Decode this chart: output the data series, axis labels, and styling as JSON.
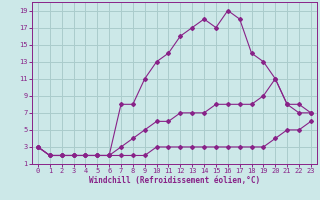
{
  "xlabel": "Windchill (Refroidissement éolien,°C)",
  "bg_color": "#cce8e8",
  "line_color": "#882288",
  "grid_color": "#aacccc",
  "xlim": [
    -0.5,
    23.5
  ],
  "ylim": [
    1,
    20
  ],
  "xticks": [
    0,
    1,
    2,
    3,
    4,
    5,
    6,
    7,
    8,
    9,
    10,
    11,
    12,
    13,
    14,
    15,
    16,
    17,
    18,
    19,
    20,
    21,
    22,
    23
  ],
  "yticks": [
    1,
    3,
    5,
    7,
    9,
    11,
    13,
    15,
    17,
    19
  ],
  "line1_x": [
    0,
    1,
    2,
    3,
    4,
    5,
    6,
    7,
    8,
    9,
    10,
    11,
    12,
    13,
    14,
    15,
    16,
    17,
    18,
    19,
    20,
    21,
    22,
    23
  ],
  "line1_y": [
    3,
    2,
    2,
    2,
    2,
    2,
    2,
    2,
    2,
    2,
    3,
    3,
    3,
    3,
    3,
    3,
    3,
    3,
    3,
    3,
    4,
    5,
    5,
    6
  ],
  "line2_x": [
    0,
    1,
    2,
    3,
    4,
    5,
    6,
    7,
    8,
    9,
    10,
    11,
    12,
    13,
    14,
    15,
    16,
    17,
    18,
    19,
    20,
    21,
    22,
    23
  ],
  "line2_y": [
    3,
    2,
    2,
    2,
    2,
    2,
    2,
    3,
    4,
    5,
    6,
    6,
    7,
    7,
    7,
    8,
    8,
    8,
    8,
    9,
    11,
    8,
    8,
    7
  ],
  "line3_x": [
    0,
    1,
    2,
    3,
    4,
    5,
    6,
    7,
    8,
    9,
    10,
    11,
    12,
    13,
    14,
    15,
    16,
    17,
    18,
    19,
    20,
    21,
    22,
    23
  ],
  "line3_y": [
    3,
    2,
    2,
    2,
    2,
    2,
    2,
    8,
    8,
    11,
    13,
    14,
    16,
    17,
    18,
    17,
    19,
    18,
    14,
    13,
    11,
    8,
    7,
    7
  ]
}
